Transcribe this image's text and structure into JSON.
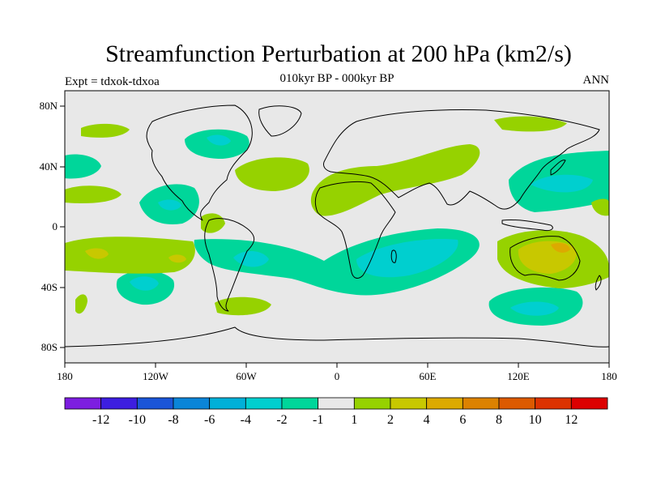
{
  "title": "Streamfunction Perturbation at 200 hPa (km2/s)",
  "subtitle": "010kyr BP - 000kyr BP",
  "left_label": "Expt = tdxok-tdxoa",
  "right_label": "ANN",
  "map": {
    "projection": "cylindrical-equidistant",
    "lon_range": [
      -180,
      180
    ],
    "lat_range": [
      -90,
      90
    ],
    "background_color": "#e8e8e8",
    "coastline_color": "#000000"
  },
  "axes": {
    "x_ticks": [
      "180",
      "120W",
      "60W",
      "0",
      "60E",
      "120E",
      "180"
    ],
    "y_ticks": [
      "80N",
      "40N",
      "0",
      "40S",
      "80S"
    ]
  },
  "colorbar": {
    "labels": [
      "-12",
      "-10",
      "-8",
      "-6",
      "-4",
      "-2",
      "-1",
      "1",
      "2",
      "4",
      "6",
      "8",
      "10",
      "12"
    ],
    "colors": [
      "#7d1ee0",
      "#3d1ee0",
      "#1a55d8",
      "#0a85d8",
      "#00b0d8",
      "#00cfcf",
      "#00d69a",
      "#e8e8e8",
      "#96d200",
      "#c8c800",
      "#dcaa00",
      "#dc8200",
      "#dc5a00",
      "#dc3200",
      "#dc0000"
    ]
  },
  "regions": [
    {
      "color": "#00d69a",
      "label": "negative -2 to -1 bands"
    },
    {
      "color": "#00cfcf",
      "label": "negative -4 to -2 cores"
    },
    {
      "color": "#96d200",
      "label": "positive 1 to 2 bands"
    },
    {
      "color": "#c8c800",
      "label": "positive 2 to 4 cores"
    },
    {
      "color": "#dcaa00",
      "label": "positive 4 to 6 core"
    }
  ]
}
